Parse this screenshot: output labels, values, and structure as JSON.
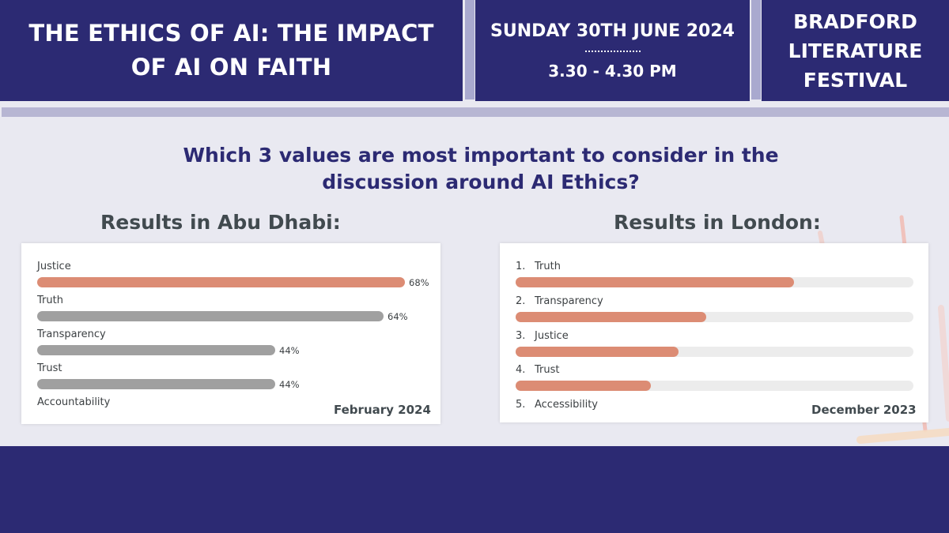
{
  "header": {
    "title": "THE ETHICS OF AI: THE IMPACT OF AI ON FAITH",
    "date": "SUNDAY 30TH JUNE 2024",
    "time": "3.30 - 4.30 PM",
    "festival": "BRADFORD LITERATURE FESTIVAL"
  },
  "question": "Which 3 values are most important to consider in the discussion around AI Ethics?",
  "colors": {
    "navy": "#2c2a73",
    "highlight_bar": "#dc8c74",
    "gray_bar": "#a0a0a0",
    "track": "#ececec"
  },
  "chart_data": [
    {
      "type": "bar",
      "orientation": "horizontal",
      "title": "Results in Abu Dhabi:",
      "caption": "February 2024",
      "categories": [
        "Justice",
        "Truth",
        "Transparency",
        "Trust",
        "Accountability"
      ],
      "values": [
        68,
        64,
        44,
        44,
        null
      ],
      "value_labels": [
        "68%",
        "64%",
        "44%",
        "44%",
        ""
      ],
      "highlighted": [
        "Justice"
      ],
      "xlim": [
        0,
        68
      ]
    },
    {
      "type": "bar",
      "orientation": "horizontal",
      "title": "Results in London:",
      "caption": "December 2023",
      "ranks": [
        "1.",
        "2.",
        "3.",
        "4.",
        "5."
      ],
      "categories": [
        "Truth",
        "Transparency",
        "Justice",
        "Trust",
        "Accessibility"
      ],
      "values": [
        70,
        48,
        41,
        34,
        null
      ],
      "xlim": [
        0,
        100
      ]
    }
  ]
}
